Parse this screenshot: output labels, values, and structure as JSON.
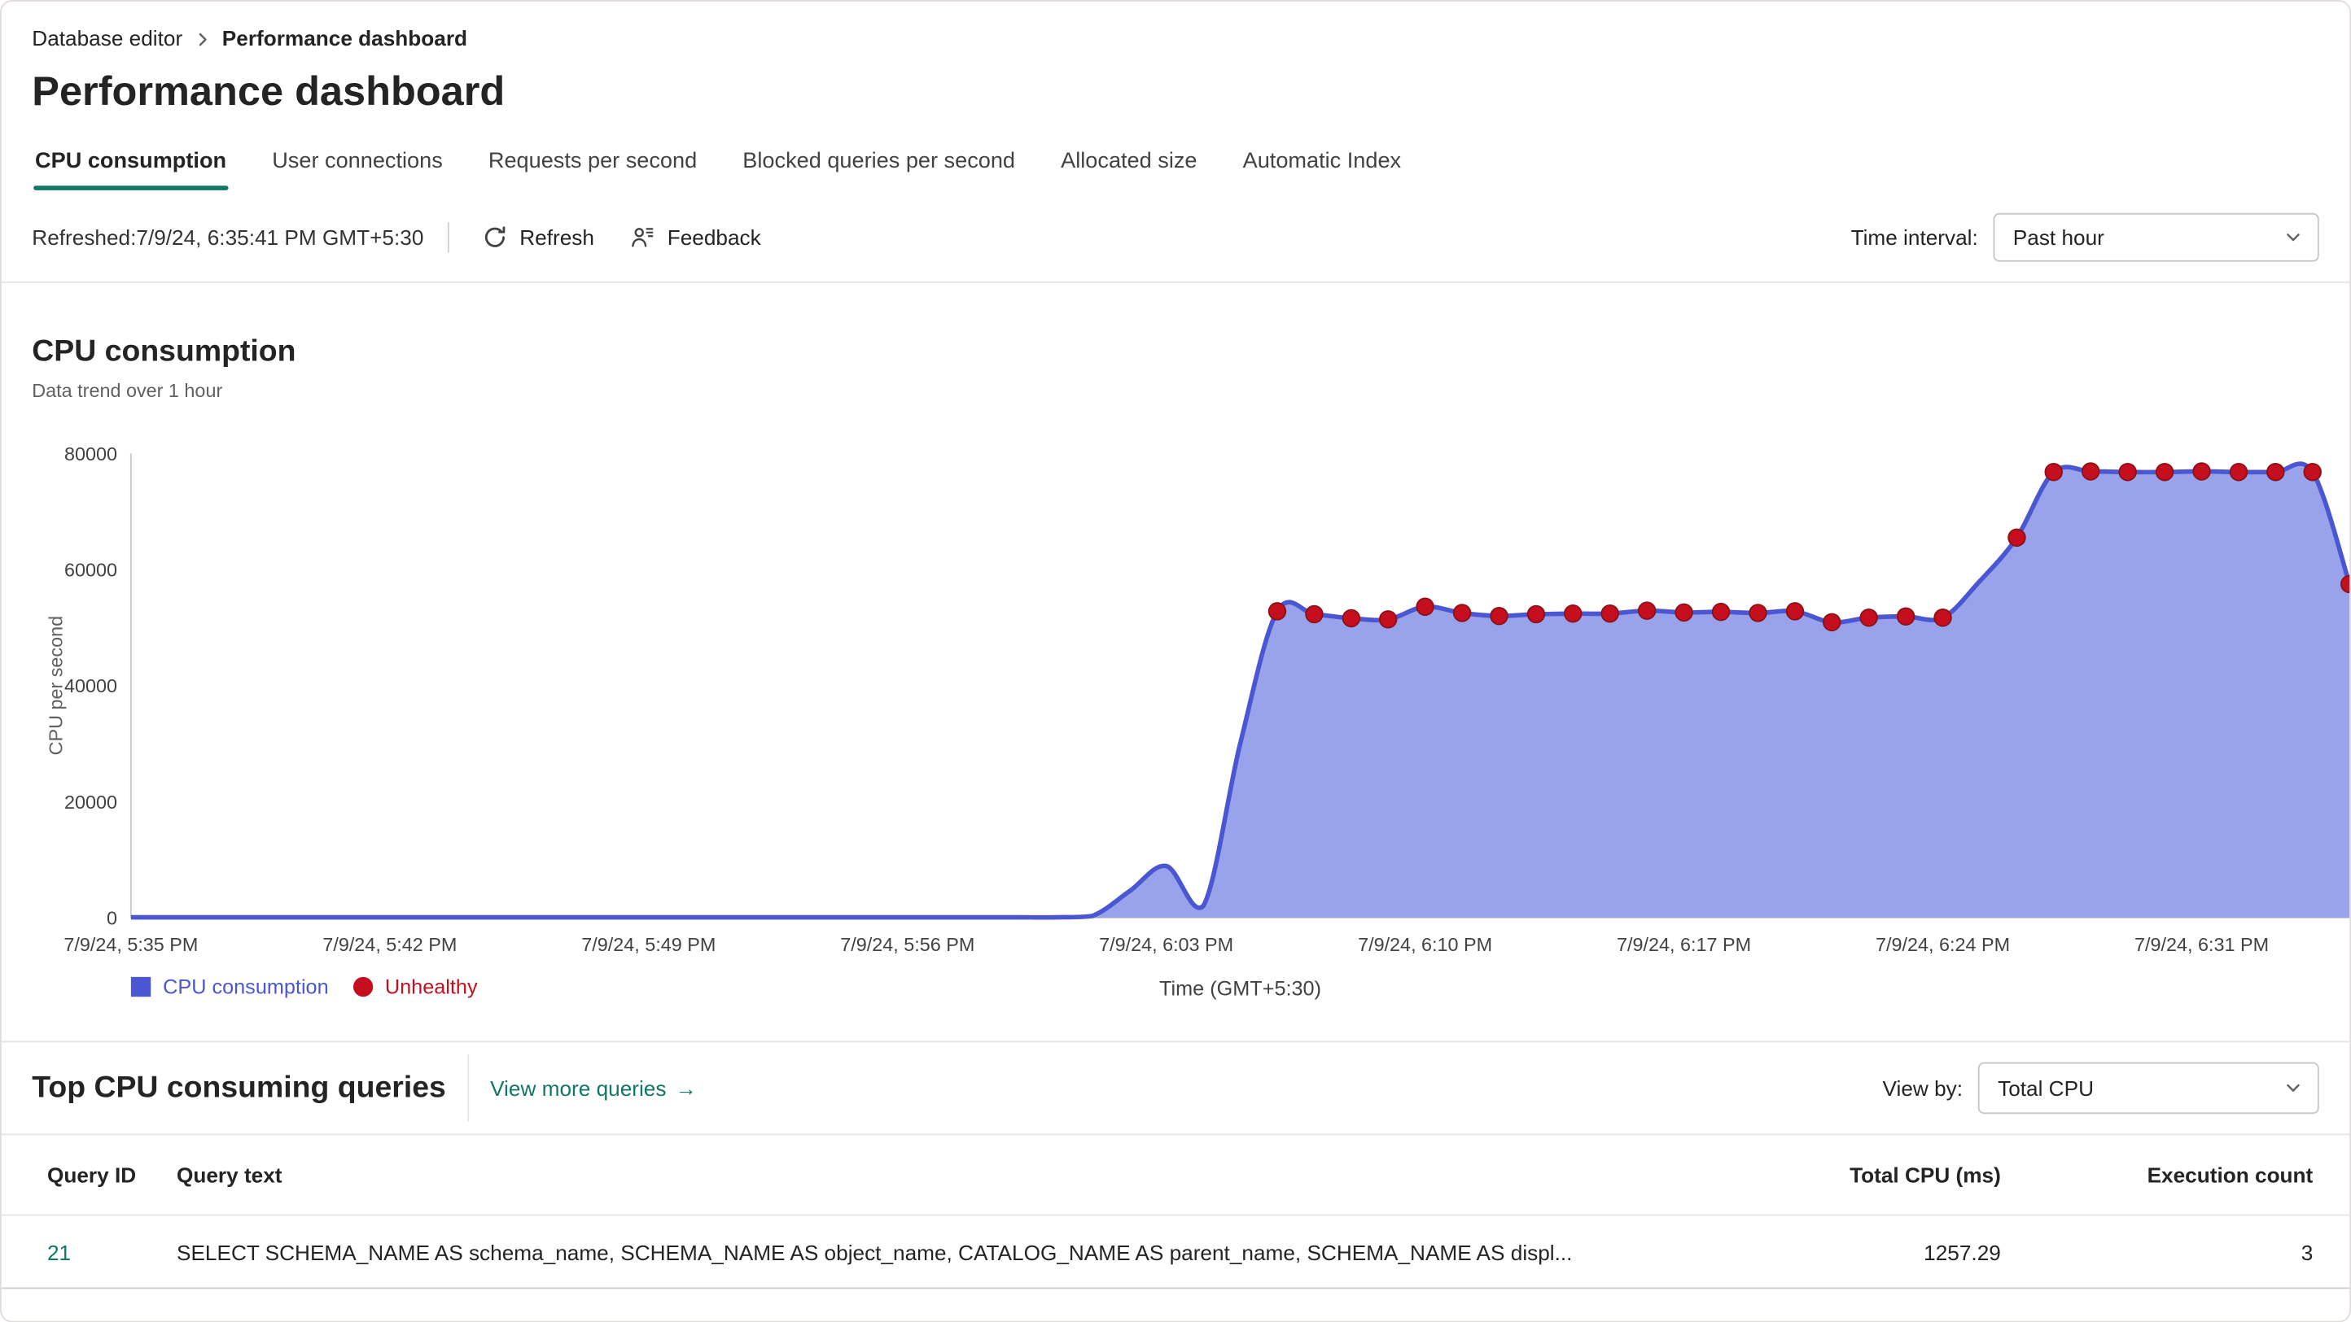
{
  "breadcrumb": {
    "items": [
      "Database editor",
      "Performance dashboard"
    ]
  },
  "page": {
    "title": "Performance dashboard"
  },
  "tabs": [
    {
      "label": "CPU consumption",
      "active": true
    },
    {
      "label": "User connections",
      "active": false
    },
    {
      "label": "Requests per second",
      "active": false
    },
    {
      "label": "Blocked queries per second",
      "active": false
    },
    {
      "label": "Allocated size",
      "active": false
    },
    {
      "label": "Automatic Index",
      "active": false
    }
  ],
  "toolbar": {
    "refreshed_label": "Refreshed:7/9/24, 6:35:41 PM GMT+5:30",
    "refresh_label": "Refresh",
    "feedback_label": "Feedback",
    "time_interval_label": "Time interval:",
    "time_interval_value": "Past hour"
  },
  "chart_section": {
    "title": "CPU consumption",
    "subtitle": "Data trend over 1 hour"
  },
  "chart_data": {
    "type": "area",
    "title": "CPU consumption",
    "series_name": "CPU consumption",
    "xlabel": "Time (GMT+5:30)",
    "ylabel": "CPU per second",
    "ylim": [
      0,
      80000
    ],
    "yticks": [
      0,
      20000,
      40000,
      60000,
      80000
    ],
    "x_start": "7/9/24, 5:35 PM",
    "x_end": "7/9/24, 6:35 PM",
    "x_interval_minutes": 1,
    "x_ticks": [
      {
        "minute": 0,
        "label": "7/9/24, 5:35 PM"
      },
      {
        "minute": 7,
        "label": "7/9/24, 5:42 PM"
      },
      {
        "minute": 14,
        "label": "7/9/24, 5:49 PM"
      },
      {
        "minute": 21,
        "label": "7/9/24, 5:56 PM"
      },
      {
        "minute": 28,
        "label": "7/9/24, 6:03 PM"
      },
      {
        "minute": 35,
        "label": "7/9/24, 6:10 PM"
      },
      {
        "minute": 42,
        "label": "7/9/24, 6:17 PM"
      },
      {
        "minute": 49,
        "label": "7/9/24, 6:24 PM"
      },
      {
        "minute": 56,
        "label": "7/9/24, 6:31 PM"
      }
    ],
    "values": [
      50,
      50,
      50,
      50,
      50,
      50,
      50,
      50,
      50,
      50,
      50,
      50,
      50,
      50,
      50,
      50,
      50,
      50,
      50,
      50,
      50,
      50,
      50,
      50,
      50,
      50,
      300,
      4500,
      8900,
      2000,
      30000,
      52800,
      52300,
      51600,
      51400,
      53600,
      52500,
      52000,
      52300,
      52400,
      52400,
      52900,
      52600,
      52700,
      52500,
      52800,
      50900,
      51700,
      51900,
      51700,
      58000,
      65500,
      76800,
      76900,
      76800,
      76800,
      76900,
      76800,
      76800,
      76800,
      57500
    ],
    "unhealthy_indices": [
      31,
      32,
      33,
      34,
      35,
      36,
      37,
      38,
      39,
      40,
      41,
      42,
      43,
      44,
      45,
      46,
      47,
      48,
      49,
      51,
      52,
      53,
      54,
      55,
      56,
      57,
      58,
      59,
      60
    ],
    "legend": [
      {
        "label": "CPU consumption",
        "color": "#4b57d2",
        "shape": "square"
      },
      {
        "label": "Unhealthy",
        "color": "#c50f1f",
        "shape": "circle"
      }
    ],
    "colors": {
      "line": "#4b57d2",
      "fill": "#8f9be9",
      "unhealthy": "#c50f1f",
      "axis": "#c8c8c8"
    }
  },
  "queries_section": {
    "title": "Top CPU consuming queries",
    "view_more_label": "View more queries",
    "view_by_label": "View by:",
    "view_by_value": "Total CPU",
    "table": {
      "columns": [
        "Query ID",
        "Query text",
        "Total CPU (ms)",
        "Execution count"
      ],
      "rows": [
        {
          "query_id": "21",
          "query_text": "SELECT SCHEMA_NAME AS schema_name, SCHEMA_NAME AS object_name, CATALOG_NAME AS parent_name, SCHEMA_NAME AS displ...",
          "total_cpu_ms": "1257.29",
          "execution_count": "3"
        }
      ]
    }
  },
  "icons": {
    "breadcrumb_separator": "chevron-right",
    "refresh": "circular-arrow",
    "feedback": "person-feedback",
    "dropdown": "chevron-down",
    "view_more_arrow": "→"
  },
  "theme": {
    "accent_teal": "#117865",
    "text_primary": "#242424",
    "text_secondary": "#616161",
    "divider": "#e6e6e6"
  }
}
